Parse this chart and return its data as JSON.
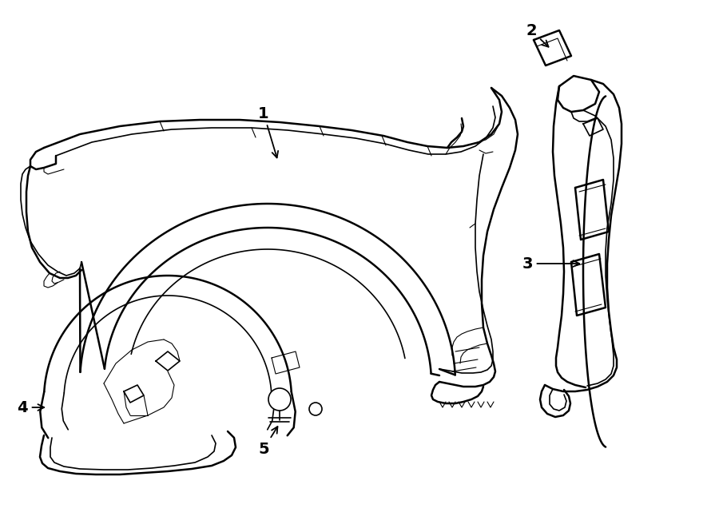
{
  "bg_color": "#ffffff",
  "line_color": "#000000",
  "lw_thin": 0.8,
  "lw_med": 1.2,
  "lw_thick": 1.8,
  "fig_width": 9.0,
  "fig_height": 6.61,
  "dpi": 100
}
